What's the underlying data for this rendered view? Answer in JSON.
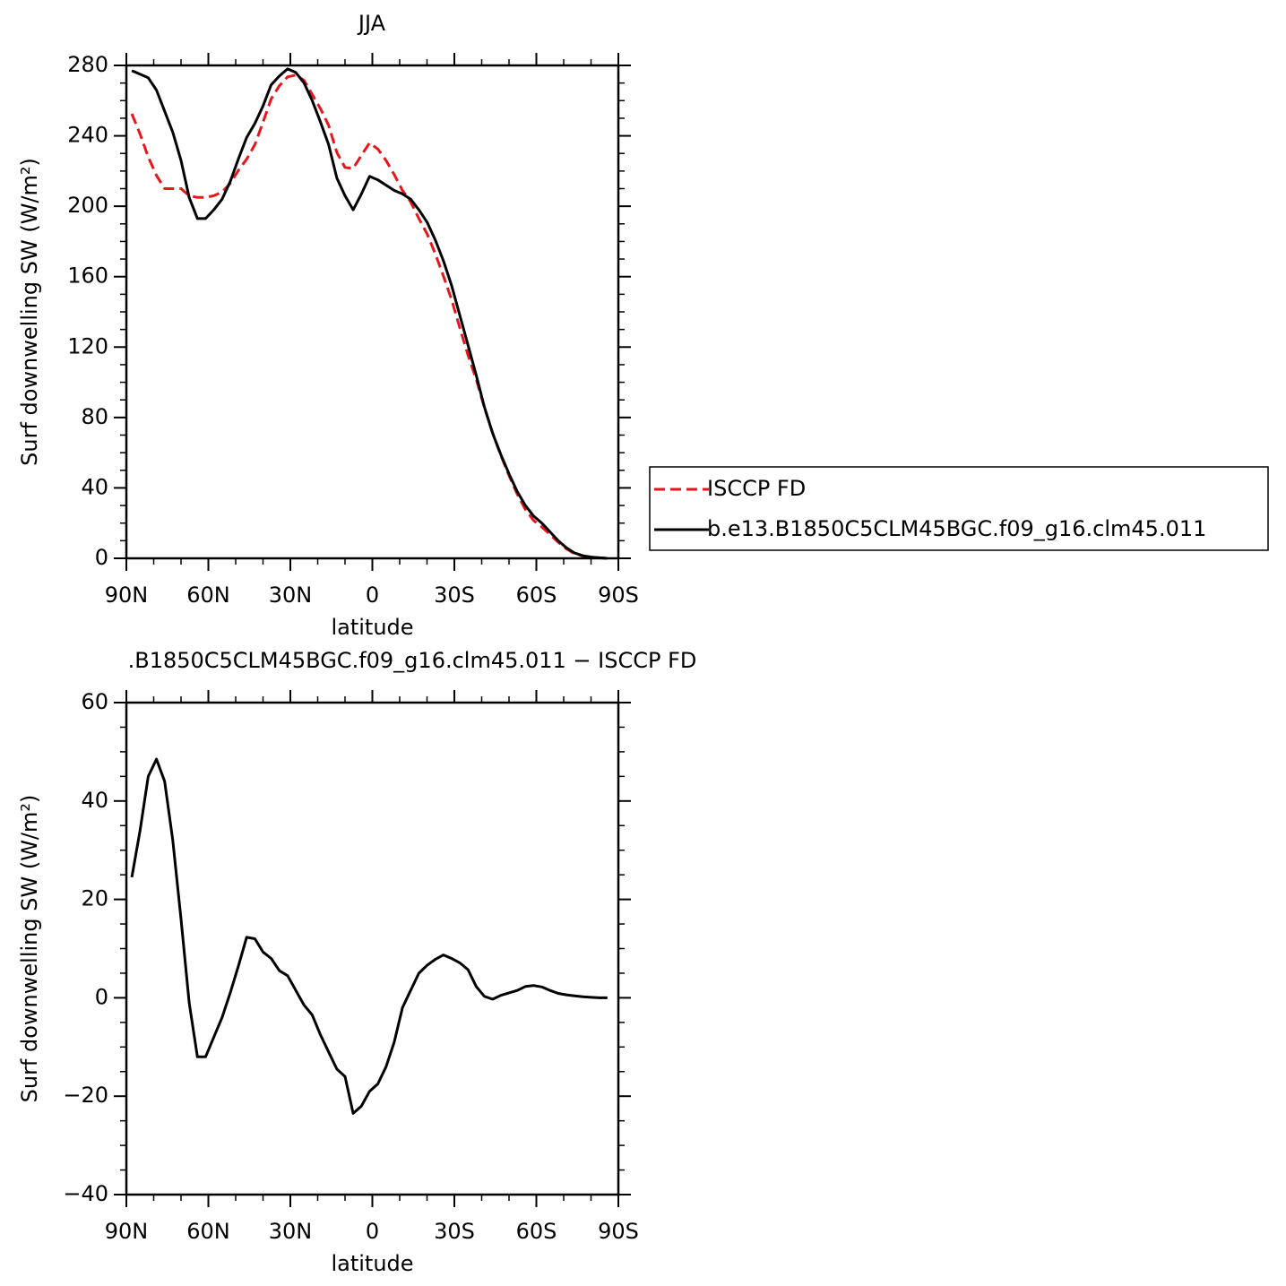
{
  "chart_data": [
    {
      "type": "line",
      "title": "JJA",
      "xlabel": "latitude",
      "ylabel": "Surf downwelling SW (W/m²)",
      "x": [
        88,
        85,
        82,
        79,
        76,
        73,
        70,
        67,
        64,
        61,
        58,
        55,
        52,
        49,
        46,
        43,
        40,
        37,
        34,
        31,
        28,
        25,
        22,
        19,
        16,
        13,
        10,
        7,
        4,
        1,
        -2,
        -5,
        -8,
        -11,
        -14,
        -17,
        -20,
        -23,
        -26,
        -29,
        -32,
        -35,
        -38,
        -41,
        -44,
        -47,
        -50,
        -53,
        -56,
        -59,
        -62,
        -65,
        -68,
        -71,
        -74,
        -77,
        -80,
        -83,
        -86
      ],
      "series": [
        {
          "name": "ISCCP FD",
          "color": "#e8161c",
          "dash": true,
          "values": [
            252.5,
            241,
            228,
            217.5,
            210,
            210,
            210,
            206,
            205,
            205,
            206,
            208,
            213,
            220.5,
            226.7,
            235,
            247.7,
            261,
            268.5,
            273.5,
            274.5,
            271.5,
            263.5,
            255.5,
            246,
            230.5,
            222,
            221.5,
            229,
            236,
            232.5,
            226,
            218,
            209,
            202.5,
            193,
            184.4,
            173.2,
            160.3,
            147,
            130.9,
            115.3,
            101.7,
            85.7,
            71.3,
            58.5,
            47,
            36.5,
            27.7,
            21.5,
            17.8,
            13.5,
            9.1,
            5.4,
            2.6,
            1.3,
            0.6,
            0.3,
            0
          ]
        },
        {
          "name": "b.e13.B1850C5CLM45BGC.f09_g16.clm45.011",
          "color": "#000000",
          "dash": false,
          "values": [
            277,
            275,
            273,
            266,
            254,
            242,
            226,
            205,
            193,
            193,
            198,
            204,
            214,
            227,
            239,
            247,
            257,
            269,
            274,
            278,
            276,
            270,
            260,
            248,
            235,
            216,
            206,
            198,
            207,
            217,
            215,
            212,
            209,
            207,
            204,
            198,
            191,
            181,
            169,
            155,
            138,
            121,
            104,
            86,
            71,
            59,
            48,
            38,
            30,
            24,
            20,
            15,
            10,
            6,
            3,
            1.5,
            0.7,
            0.3,
            0
          ]
        }
      ],
      "xlim": [
        90,
        -90
      ],
      "xticks": [
        {
          "value": 90,
          "label": "90N"
        },
        {
          "value": 60,
          "label": "60N"
        },
        {
          "value": 30,
          "label": "30N"
        },
        0,
        {
          "value": -30,
          "label": "30S"
        },
        {
          "value": -60,
          "label": "60S"
        },
        {
          "value": -90,
          "label": "90S"
        }
      ],
      "xminorticks": [
        80,
        70,
        50,
        40,
        20,
        10,
        -10,
        -20,
        -40,
        -50,
        -70,
        -80
      ],
      "ylim": [
        0,
        280
      ],
      "yticks": [
        0,
        40,
        80,
        120,
        160,
        200,
        240,
        280
      ],
      "yminorticks": [
        10,
        20,
        30,
        50,
        60,
        70,
        90,
        100,
        110,
        130,
        140,
        150,
        170,
        180,
        190,
        210,
        220,
        230,
        250,
        260,
        270
      ],
      "legend": "right"
    },
    {
      "type": "line",
      "title": ".B1850C5CLM45BGC.f09_g16.clm45.011 − ISCCP FD",
      "xlabel": "latitude",
      "ylabel": "Surf downwelling SW (W/m²)",
      "x": [
        88,
        85,
        82,
        79,
        76,
        73,
        70,
        67,
        64,
        61,
        58,
        55,
        52,
        49,
        46,
        43,
        40,
        37,
        34,
        31,
        28,
        25,
        22,
        19,
        16,
        13,
        10,
        7,
        4,
        1,
        -2,
        -5,
        -8,
        -11,
        -14,
        -17,
        -20,
        -23,
        -26,
        -29,
        -32,
        -35,
        -38,
        -41,
        -44,
        -47,
        -50,
        -53,
        -56,
        -59,
        -62,
        -65,
        -68,
        -71,
        -74,
        -77,
        -80,
        -83,
        -86
      ],
      "series": [
        {
          "color": "#000000",
          "dash": false,
          "values": [
            24.5,
            34,
            45,
            48.5,
            44,
            32,
            16,
            -1,
            -12,
            -12,
            -8,
            -4,
            1,
            6.5,
            12.3,
            12,
            9.3,
            8,
            5.5,
            4.5,
            1.5,
            -1.5,
            -3.5,
            -7.5,
            -11,
            -14.5,
            -16,
            -23.5,
            -22,
            -19,
            -17.5,
            -14,
            -9,
            -2,
            1.5,
            5,
            6.6,
            7.8,
            8.7,
            8,
            7.1,
            5.7,
            2.3,
            0.3,
            -0.3,
            0.5,
            1.0,
            1.5,
            2.3,
            2.5,
            2.2,
            1.5,
            0.9,
            0.6,
            0.4,
            0.2,
            0.1,
            0,
            0
          ]
        }
      ],
      "xlim": [
        90,
        -90
      ],
      "xticks": [
        {
          "value": 90,
          "label": "90N"
        },
        {
          "value": 60,
          "label": "60N"
        },
        {
          "value": 30,
          "label": "30N"
        },
        0,
        {
          "value": -30,
          "label": "30S"
        },
        {
          "value": -60,
          "label": "60S"
        },
        {
          "value": -90,
          "label": "90S"
        }
      ],
      "xminorticks": [
        80,
        70,
        50,
        40,
        20,
        10,
        -10,
        -20,
        -40,
        -50,
        -70,
        -80
      ],
      "ylim": [
        -40,
        60
      ],
      "yticks": [
        {
          "value": -40,
          "label": "−40"
        },
        {
          "value": -20,
          "label": "−20"
        },
        0,
        20,
        40,
        60
      ],
      "yminorticks": [
        -35,
        -30,
        -25,
        -15,
        -10,
        -5,
        5,
        10,
        15,
        25,
        30,
        35,
        45,
        50,
        55
      ]
    }
  ]
}
